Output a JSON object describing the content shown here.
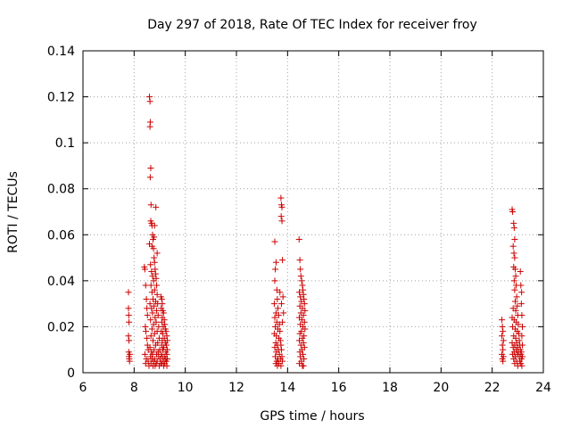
{
  "chart_data": {
    "type": "scatter",
    "title": "Day 297 of 2018, Rate Of TEC Index for receiver froy",
    "xlabel": "GPS time / hours",
    "ylabel": "ROTI / TECUs",
    "xlim": [
      6,
      24
    ],
    "ylim": [
      0,
      0.14
    ],
    "xticks": [
      "6",
      "8",
      "10",
      "12",
      "14",
      "16",
      "18",
      "20",
      "22",
      "24"
    ],
    "yticks": [
      "0",
      "0.02",
      "0.04",
      "0.06",
      "0.08",
      "0.1",
      "0.12",
      "0.14"
    ],
    "grid": true,
    "marker": "+",
    "color": "#cc0000",
    "series": [
      {
        "points": [
          [
            7.78,
            0.035
          ],
          [
            7.78,
            0.028
          ],
          [
            7.79,
            0.025
          ],
          [
            7.8,
            0.022
          ],
          [
            7.78,
            0.016
          ],
          [
            7.8,
            0.014
          ],
          [
            7.79,
            0.009
          ],
          [
            7.8,
            0.007
          ],
          [
            7.81,
            0.006
          ],
          [
            7.82,
            0.005
          ],
          [
            7.83,
            0.008
          ],
          [
            8.4,
            0.046
          ],
          [
            8.42,
            0.045
          ],
          [
            8.45,
            0.038
          ],
          [
            8.48,
            0.032
          ],
          [
            8.5,
            0.028
          ],
          [
            8.52,
            0.025
          ],
          [
            8.44,
            0.02
          ],
          [
            8.46,
            0.018
          ],
          [
            8.5,
            0.015
          ],
          [
            8.52,
            0.012
          ],
          [
            8.55,
            0.01
          ],
          [
            8.42,
            0.008
          ],
          [
            8.48,
            0.006
          ],
          [
            8.55,
            0.005
          ],
          [
            8.45,
            0.004
          ],
          [
            8.58,
            0.003
          ],
          [
            8.6,
            0.12
          ],
          [
            8.62,
            0.118
          ],
          [
            8.63,
            0.109
          ],
          [
            8.62,
            0.107
          ],
          [
            8.65,
            0.089
          ],
          [
            8.63,
            0.085
          ],
          [
            8.66,
            0.073
          ],
          [
            8.65,
            0.066
          ],
          [
            8.68,
            0.065
          ],
          [
            8.7,
            0.064
          ],
          [
            8.72,
            0.06
          ],
          [
            8.74,
            0.058
          ],
          [
            8.6,
            0.056
          ],
          [
            8.7,
            0.055
          ],
          [
            8.76,
            0.054
          ],
          [
            8.78,
            0.05
          ],
          [
            8.8,
            0.048
          ],
          [
            8.64,
            0.047
          ],
          [
            8.82,
            0.045
          ],
          [
            8.68,
            0.044
          ],
          [
            8.84,
            0.043
          ],
          [
            8.72,
            0.042
          ],
          [
            8.86,
            0.041
          ],
          [
            8.76,
            0.04
          ],
          [
            8.66,
            0.038
          ],
          [
            8.88,
            0.038
          ],
          [
            8.8,
            0.036
          ],
          [
            8.7,
            0.035
          ],
          [
            8.9,
            0.034
          ],
          [
            8.74,
            0.032
          ],
          [
            8.84,
            0.031
          ],
          [
            8.62,
            0.03
          ],
          [
            8.92,
            0.03
          ],
          [
            8.78,
            0.029
          ],
          [
            8.68,
            0.028
          ],
          [
            8.88,
            0.027
          ],
          [
            8.72,
            0.026
          ],
          [
            8.94,
            0.025
          ],
          [
            8.82,
            0.024
          ],
          [
            8.64,
            0.023
          ],
          [
            8.86,
            0.022
          ],
          [
            8.76,
            0.021
          ],
          [
            8.96,
            0.02
          ],
          [
            8.7,
            0.019
          ],
          [
            8.9,
            0.018
          ],
          [
            8.8,
            0.017
          ],
          [
            8.66,
            0.016
          ],
          [
            8.98,
            0.015
          ],
          [
            8.74,
            0.014
          ],
          [
            8.92,
            0.013
          ],
          [
            8.84,
            0.012
          ],
          [
            8.62,
            0.011
          ],
          [
            9.0,
            0.01
          ],
          [
            8.78,
            0.01
          ],
          [
            8.68,
            0.009
          ],
          [
            8.94,
            0.009
          ],
          [
            8.72,
            0.008
          ],
          [
            8.88,
            0.008
          ],
          [
            8.64,
            0.007
          ],
          [
            8.96,
            0.007
          ],
          [
            8.8,
            0.006
          ],
          [
            8.7,
            0.006
          ],
          [
            9.02,
            0.006
          ],
          [
            8.76,
            0.005
          ],
          [
            8.9,
            0.005
          ],
          [
            8.66,
            0.004
          ],
          [
            8.86,
            0.004
          ],
          [
            9.04,
            0.004
          ],
          [
            8.74,
            0.003
          ],
          [
            8.98,
            0.003
          ],
          [
            8.82,
            0.003
          ],
          [
            8.85,
            0.072
          ],
          [
            8.8,
            0.064
          ],
          [
            8.78,
            0.059
          ],
          [
            8.9,
            0.052
          ],
          [
            9.05,
            0.033
          ],
          [
            9.08,
            0.032
          ],
          [
            9.1,
            0.03
          ],
          [
            9.06,
            0.028
          ],
          [
            9.12,
            0.027
          ],
          [
            9.15,
            0.026
          ],
          [
            9.1,
            0.024
          ],
          [
            9.18,
            0.023
          ],
          [
            9.08,
            0.022
          ],
          [
            9.2,
            0.021
          ],
          [
            9.14,
            0.02
          ],
          [
            9.22,
            0.019
          ],
          [
            9.06,
            0.018
          ],
          [
            9.25,
            0.018
          ],
          [
            9.12,
            0.017
          ],
          [
            9.28,
            0.016
          ],
          [
            9.18,
            0.015
          ],
          [
            9.1,
            0.014
          ],
          [
            9.3,
            0.014
          ],
          [
            9.22,
            0.013
          ],
          [
            9.08,
            0.012
          ],
          [
            9.26,
            0.012
          ],
          [
            9.16,
            0.011
          ],
          [
            9.3,
            0.01
          ],
          [
            9.12,
            0.01
          ],
          [
            9.24,
            0.009
          ],
          [
            9.06,
            0.008
          ],
          [
            9.28,
            0.008
          ],
          [
            9.18,
            0.007
          ],
          [
            9.1,
            0.007
          ],
          [
            9.22,
            0.006
          ],
          [
            9.3,
            0.006
          ],
          [
            9.14,
            0.005
          ],
          [
            9.26,
            0.005
          ],
          [
            9.08,
            0.004
          ],
          [
            9.2,
            0.004
          ],
          [
            9.28,
            0.003
          ],
          [
            9.16,
            0.003
          ],
          [
            13.5,
            0.057
          ],
          [
            13.55,
            0.048
          ],
          [
            13.52,
            0.045
          ],
          [
            13.5,
            0.04
          ],
          [
            13.58,
            0.036
          ],
          [
            13.6,
            0.032
          ],
          [
            13.48,
            0.03
          ],
          [
            13.62,
            0.028
          ],
          [
            13.55,
            0.026
          ],
          [
            13.65,
            0.025
          ],
          [
            13.5,
            0.024
          ],
          [
            13.58,
            0.022
          ],
          [
            13.68,
            0.021
          ],
          [
            13.52,
            0.02
          ],
          [
            13.62,
            0.019
          ],
          [
            13.7,
            0.018
          ],
          [
            13.48,
            0.017
          ],
          [
            13.56,
            0.016
          ],
          [
            13.66,
            0.015
          ],
          [
            13.72,
            0.014
          ],
          [
            13.54,
            0.013
          ],
          [
            13.6,
            0.012
          ],
          [
            13.74,
            0.012
          ],
          [
            13.5,
            0.011
          ],
          [
            13.64,
            0.01
          ],
          [
            13.76,
            0.01
          ],
          [
            13.56,
            0.009
          ],
          [
            13.68,
            0.008
          ],
          [
            13.52,
            0.007
          ],
          [
            13.78,
            0.007
          ],
          [
            13.62,
            0.006
          ],
          [
            13.72,
            0.006
          ],
          [
            13.58,
            0.005
          ],
          [
            13.8,
            0.005
          ],
          [
            13.66,
            0.004
          ],
          [
            13.54,
            0.004
          ],
          [
            13.74,
            0.003
          ],
          [
            13.6,
            0.003
          ],
          [
            13.74,
            0.076
          ],
          [
            13.76,
            0.073
          ],
          [
            13.78,
            0.072
          ],
          [
            13.75,
            0.068
          ],
          [
            13.78,
            0.066
          ],
          [
            13.8,
            0.049
          ],
          [
            13.7,
            0.035
          ],
          [
            13.82,
            0.033
          ],
          [
            13.76,
            0.03
          ],
          [
            13.84,
            0.026
          ],
          [
            13.8,
            0.022
          ],
          [
            14.45,
            0.058
          ],
          [
            14.48,
            0.049
          ],
          [
            14.5,
            0.045
          ],
          [
            14.52,
            0.042
          ],
          [
            14.55,
            0.04
          ],
          [
            14.58,
            0.038
          ],
          [
            14.6,
            0.036
          ],
          [
            14.46,
            0.035
          ],
          [
            14.62,
            0.034
          ],
          [
            14.5,
            0.033
          ],
          [
            14.64,
            0.032
          ],
          [
            14.54,
            0.031
          ],
          [
            14.66,
            0.03
          ],
          [
            14.48,
            0.029
          ],
          [
            14.58,
            0.028
          ],
          [
            14.68,
            0.027
          ],
          [
            14.52,
            0.026
          ],
          [
            14.62,
            0.025
          ],
          [
            14.46,
            0.024
          ],
          [
            14.56,
            0.023
          ],
          [
            14.66,
            0.022
          ],
          [
            14.5,
            0.021
          ],
          [
            14.6,
            0.02
          ],
          [
            14.68,
            0.019
          ],
          [
            14.54,
            0.018
          ],
          [
            14.48,
            0.017
          ],
          [
            14.64,
            0.016
          ],
          [
            14.58,
            0.015
          ],
          [
            14.46,
            0.014
          ],
          [
            14.62,
            0.013
          ],
          [
            14.52,
            0.012
          ],
          [
            14.66,
            0.011
          ],
          [
            14.56,
            0.01
          ],
          [
            14.48,
            0.009
          ],
          [
            14.6,
            0.008
          ],
          [
            14.5,
            0.007
          ],
          [
            14.64,
            0.006
          ],
          [
            14.54,
            0.005
          ],
          [
            14.46,
            0.004
          ],
          [
            14.58,
            0.003
          ],
          [
            14.62,
            0.003
          ],
          [
            22.38,
            0.023
          ],
          [
            22.4,
            0.02
          ],
          [
            22.42,
            0.018
          ],
          [
            22.38,
            0.016
          ],
          [
            22.44,
            0.014
          ],
          [
            22.4,
            0.012
          ],
          [
            22.42,
            0.01
          ],
          [
            22.38,
            0.008
          ],
          [
            22.44,
            0.007
          ],
          [
            22.4,
            0.006
          ],
          [
            22.42,
            0.005
          ],
          [
            22.78,
            0.071
          ],
          [
            22.8,
            0.07
          ],
          [
            22.84,
            0.065
          ],
          [
            22.86,
            0.063
          ],
          [
            22.88,
            0.058
          ],
          [
            22.82,
            0.055
          ],
          [
            22.85,
            0.052
          ],
          [
            22.88,
            0.05
          ],
          [
            22.84,
            0.046
          ],
          [
            22.9,
            0.045
          ],
          [
            22.92,
            0.042
          ],
          [
            22.86,
            0.04
          ],
          [
            22.94,
            0.038
          ],
          [
            22.88,
            0.036
          ],
          [
            22.96,
            0.033
          ],
          [
            22.9,
            0.031
          ],
          [
            22.98,
            0.029
          ],
          [
            22.82,
            0.028
          ],
          [
            22.92,
            0.027
          ],
          [
            23.0,
            0.025
          ],
          [
            22.78,
            0.024
          ],
          [
            22.86,
            0.023
          ],
          [
            22.94,
            0.022
          ],
          [
            23.02,
            0.021
          ],
          [
            22.8,
            0.02
          ],
          [
            22.9,
            0.019
          ],
          [
            22.98,
            0.018
          ],
          [
            23.04,
            0.017
          ],
          [
            22.84,
            0.016
          ],
          [
            22.92,
            0.015
          ],
          [
            23.06,
            0.014
          ],
          [
            22.78,
            0.013
          ],
          [
            22.96,
            0.013
          ],
          [
            22.88,
            0.012
          ],
          [
            23.08,
            0.012
          ],
          [
            22.82,
            0.011
          ],
          [
            23.0,
            0.011
          ],
          [
            22.94,
            0.01
          ],
          [
            23.1,
            0.01
          ],
          [
            22.86,
            0.009
          ],
          [
            23.02,
            0.009
          ],
          [
            22.8,
            0.008
          ],
          [
            22.98,
            0.008
          ],
          [
            23.12,
            0.008
          ],
          [
            22.9,
            0.007
          ],
          [
            23.06,
            0.007
          ],
          [
            22.84,
            0.006
          ],
          [
            23.14,
            0.006
          ],
          [
            22.96,
            0.005
          ],
          [
            23.08,
            0.005
          ],
          [
            22.88,
            0.004
          ],
          [
            23.12,
            0.004
          ],
          [
            23.0,
            0.003
          ],
          [
            23.16,
            0.003
          ],
          [
            23.1,
            0.044
          ],
          [
            23.12,
            0.038
          ],
          [
            23.15,
            0.035
          ],
          [
            23.14,
            0.03
          ],
          [
            23.16,
            0.025
          ],
          [
            23.18,
            0.02
          ],
          [
            23.16,
            0.016
          ],
          [
            23.18,
            0.012
          ],
          [
            23.14,
            0.009
          ],
          [
            23.18,
            0.007
          ]
        ]
      }
    ]
  }
}
